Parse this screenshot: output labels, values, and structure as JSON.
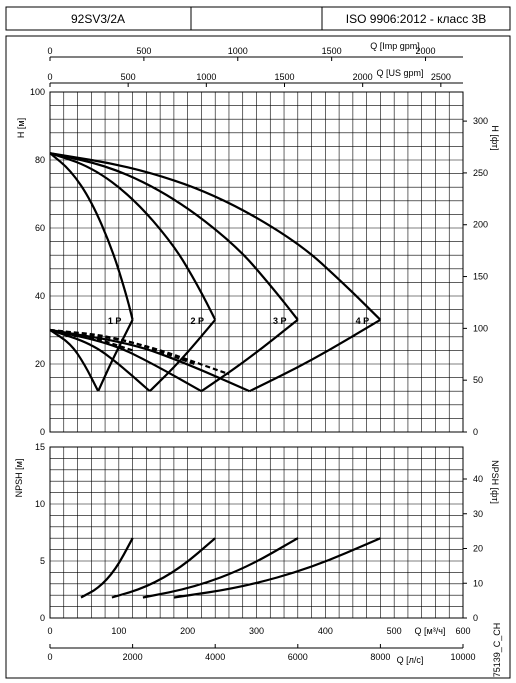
{
  "header": {
    "model": "92SV3/2A",
    "middle": "",
    "standard": "ISO 9906:2012 - класс 3B"
  },
  "chart_data": [
    {
      "type": "line",
      "name_id": "head-chart",
      "xlabel": "Q [м³/ч]",
      "ylabel": "H [м]",
      "ylabel_right": "H [фт]",
      "xlim": [
        0,
        600
      ],
      "ylim": [
        0,
        100
      ],
      "yticks": [
        0,
        20,
        40,
        60,
        80,
        100
      ],
      "yticks_right": [
        0,
        50,
        100,
        150,
        200,
        250,
        300
      ],
      "top_axes": [
        {
          "label": "Q [Imp gpm]",
          "ticks": [
            0,
            500,
            1000,
            1500,
            2000
          ]
        },
        {
          "label": "Q [US gpm]",
          "ticks": [
            0,
            500,
            1000,
            1500,
            2000,
            2500
          ]
        }
      ],
      "grid": true,
      "series": [
        {
          "name": "1 P",
          "x": [
            0,
            30,
            60,
            90,
            110,
            120
          ],
          "y": [
            82,
            77,
            68,
            54,
            41,
            33
          ]
        },
        {
          "name": "2 P",
          "x": [
            0,
            60,
            120,
            180,
            215,
            240
          ],
          "y": [
            82,
            78,
            69,
            55,
            43,
            33
          ]
        },
        {
          "name": "3 P",
          "x": [
            0,
            90,
            180,
            270,
            325,
            360
          ],
          "y": [
            82,
            78,
            69,
            55,
            42,
            33
          ]
        },
        {
          "name": "4 P",
          "x": [
            0,
            120,
            240,
            360,
            430,
            480
          ],
          "y": [
            82,
            78,
            70,
            56,
            43,
            33
          ]
        }
      ],
      "efficiency_curves": [
        {
          "x": [
            0,
            30,
            50,
            70
          ],
          "y": [
            30,
            26,
            20,
            12
          ]
        },
        {
          "x": [
            0,
            60,
            100,
            145
          ],
          "y": [
            30,
            26,
            20,
            12
          ]
        },
        {
          "x": [
            0,
            90,
            150,
            220
          ],
          "y": [
            30,
            26,
            20,
            12
          ]
        },
        {
          "x": [
            0,
            120,
            200,
            290
          ],
          "y": [
            30,
            26,
            20,
            12
          ]
        }
      ],
      "efficiency_rising": [
        {
          "x": [
            70,
            90,
            120
          ],
          "y": [
            12,
            21,
            33
          ]
        },
        {
          "x": [
            145,
            190,
            240
          ],
          "y": [
            12,
            21,
            33
          ]
        },
        {
          "x": [
            220,
            285,
            360
          ],
          "y": [
            12,
            21,
            33
          ]
        },
        {
          "x": [
            290,
            380,
            480
          ],
          "y": [
            12,
            21,
            33
          ]
        }
      ],
      "dashed": [
        {
          "x": [
            0,
            60,
            120
          ],
          "y": [
            30,
            28,
            24
          ]
        },
        {
          "x": [
            0,
            100,
            210
          ],
          "y": [
            30,
            28,
            20
          ]
        },
        {
          "x": [
            0,
            120,
            260
          ],
          "y": [
            30,
            27,
            17
          ]
        }
      ]
    },
    {
      "type": "line",
      "name_id": "npsh-chart",
      "xlabel": "Q [л/с]",
      "ylabel": "NPSH [м]",
      "ylabel_right": "NPSH [фт]",
      "xlim": [
        0,
        600
      ],
      "ylim": [
        0,
        15
      ],
      "xticks": [
        0,
        100,
        200,
        300,
        400,
        500,
        600
      ],
      "xticks_ls": [
        0,
        2000,
        4000,
        6000,
        8000,
        10000
      ],
      "yticks": [
        0,
        5,
        10,
        15
      ],
      "yticks_right": [
        0,
        10,
        20,
        30,
        40
      ],
      "grid": true,
      "series": [
        {
          "name": "1 P",
          "x": [
            45,
            70,
            95,
            120
          ],
          "y": [
            1.8,
            2.6,
            4.2,
            7.0
          ]
        },
        {
          "name": "2 P",
          "x": [
            90,
            140,
            190,
            240
          ],
          "y": [
            1.8,
            2.7,
            4.4,
            7.0
          ]
        },
        {
          "name": "3 P",
          "x": [
            135,
            210,
            285,
            360
          ],
          "y": [
            1.8,
            2.7,
            4.4,
            7.0
          ]
        },
        {
          "name": "4 P",
          "x": [
            180,
            280,
            380,
            480
          ],
          "y": [
            1.8,
            2.7,
            4.4,
            7.0
          ]
        }
      ]
    }
  ],
  "side_code": "75139_C_CH"
}
